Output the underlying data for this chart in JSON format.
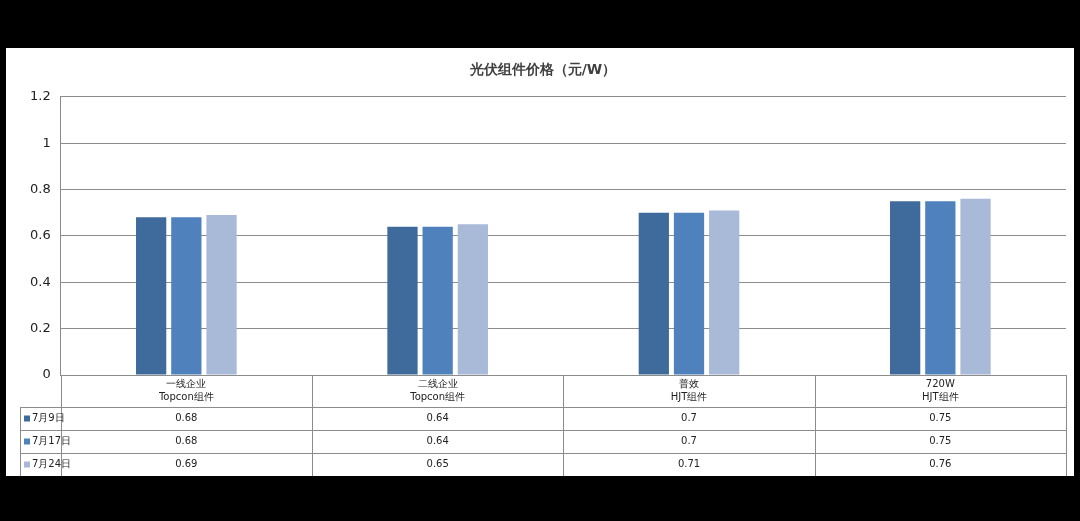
{
  "chart_data": {
    "type": "bar",
    "title": "光伏组件价格（元/W）",
    "categories": [
      "一线企业\nTopcon组件",
      "二线企业\nTopcon组件",
      "普效\nHJT组件",
      "720W\nHJT组件"
    ],
    "series": [
      {
        "name": "7月9日",
        "color": "#3f6a9c",
        "values": [
          0.68,
          0.64,
          0.7,
          0.75
        ]
      },
      {
        "name": "7月17日",
        "color": "#4f81bd",
        "values": [
          0.68,
          0.64,
          0.7,
          0.75
        ]
      },
      {
        "name": "7月24日",
        "color": "#a9b9d8",
        "values": [
          0.69,
          0.65,
          0.71,
          0.76
        ]
      }
    ],
    "ylim": [
      0,
      1.2
    ],
    "yticks": [
      0,
      0.2,
      0.4,
      0.6,
      0.8,
      1,
      1.2
    ],
    "grid": "y",
    "legend": "bottom",
    "data_labels": true
  }
}
